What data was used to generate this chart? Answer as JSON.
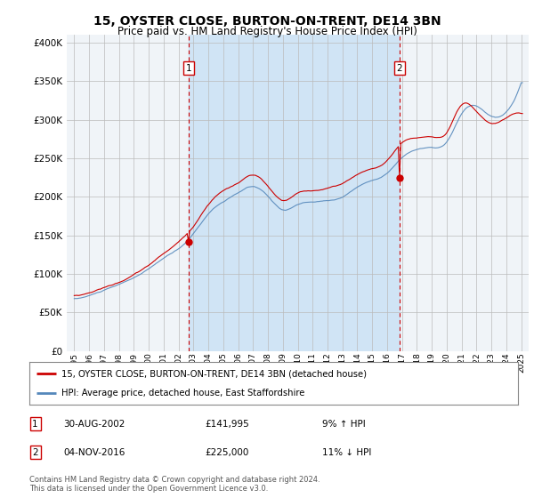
{
  "title": "15, OYSTER CLOSE, BURTON-ON-TRENT, DE14 3BN",
  "subtitle": "Price paid vs. HM Land Registry's House Price Index (HPI)",
  "plot_bg_color": "#f0f4f8",
  "shade_color": "#d0e4f5",
  "legend_label_red": "15, OYSTER CLOSE, BURTON-ON-TRENT, DE14 3BN (detached house)",
  "legend_label_blue": "HPI: Average price, detached house, East Staffordshire",
  "transactions": [
    {
      "label": "1",
      "date": "30-AUG-2002",
      "price": 141995,
      "pct": "9%",
      "dir": "↑",
      "x": 2002.67
    },
    {
      "label": "2",
      "date": "04-NOV-2016",
      "price": 225000,
      "pct": "11%",
      "dir": "↓",
      "x": 2016.84
    }
  ],
  "footnote": "Contains HM Land Registry data © Crown copyright and database right 2024.\nThis data is licensed under the Open Government Licence v3.0.",
  "ylim": [
    0,
    410000
  ],
  "xlim": [
    1994.5,
    2025.5
  ],
  "yticks": [
    0,
    50000,
    100000,
    150000,
    200000,
    250000,
    300000,
    350000,
    400000
  ],
  "xticks": [
    1995,
    1996,
    1997,
    1998,
    1999,
    2000,
    2001,
    2002,
    2003,
    2004,
    2005,
    2006,
    2007,
    2008,
    2009,
    2010,
    2011,
    2012,
    2013,
    2014,
    2015,
    2016,
    2017,
    2018,
    2019,
    2020,
    2021,
    2022,
    2023,
    2024,
    2025
  ],
  "red_color": "#cc0000",
  "blue_color": "#5588bb",
  "vline_color": "#cc0000",
  "box_color": "#cc0000",
  "transaction1_price": 141995,
  "transaction2_price": 225000,
  "transaction1_x": 2002.67,
  "transaction2_x": 2016.84
}
